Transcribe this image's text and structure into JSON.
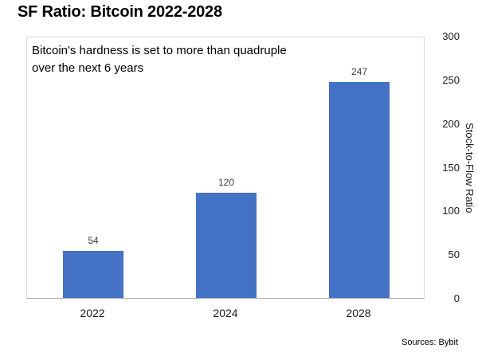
{
  "chart_data": {
    "type": "bar",
    "title": "SF Ratio: Bitcoin 2022-2028",
    "annotation": "Bitcoin's hardness is set to more than quadruple\nover the next 6 years",
    "categories": [
      "2022",
      "2024",
      "2028"
    ],
    "values": [
      54,
      120,
      247
    ],
    "data_labels": [
      "54",
      "120",
      "247"
    ],
    "xlabel": "",
    "ylabel": "Stock-to-Flow Ratio",
    "ylim": [
      0,
      300
    ],
    "yticks": [
      0,
      50,
      100,
      150,
      200,
      250,
      300
    ],
    "y_axis_side": "right",
    "grid": false,
    "legend": "none",
    "bar_color": "#4472c4",
    "source": "Sources: Bybit"
  }
}
